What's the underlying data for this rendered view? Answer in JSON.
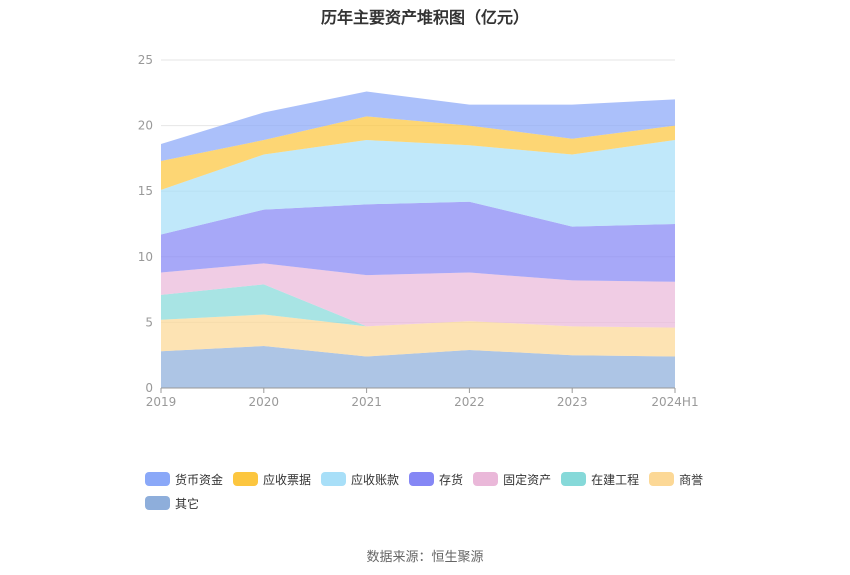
{
  "chart_data": {
    "type": "area",
    "stacked": true,
    "title": "历年主要资产堆积图（亿元）",
    "xlabel": "",
    "ylabel": "",
    "categories": [
      "2019",
      "2020",
      "2021",
      "2022",
      "2023",
      "2024H1"
    ],
    "ylim": [
      0,
      25
    ],
    "yticks": [
      0,
      5,
      10,
      15,
      20,
      25
    ],
    "grid": true,
    "legend_position": "bottom",
    "series": [
      {
        "name": "其它",
        "color": "#8eaedb",
        "values": [
          2.8,
          3.2,
          2.4,
          2.9,
          2.5,
          2.4
        ]
      },
      {
        "name": "商誉",
        "color": "#fcd896",
        "values": [
          2.4,
          2.4,
          2.3,
          2.2,
          2.2,
          2.2
        ]
      },
      {
        "name": "在建工程",
        "color": "#86d9d9",
        "values": [
          1.9,
          2.3,
          0.0,
          0.0,
          0.0,
          0.0
        ]
      },
      {
        "name": "固定资产",
        "color": "#eab8d9",
        "values": [
          1.7,
          1.6,
          3.9,
          3.7,
          3.5,
          3.5
        ]
      },
      {
        "name": "存货",
        "color": "#8587f5",
        "values": [
          2.9,
          4.1,
          5.4,
          5.4,
          4.1,
          4.4
        ]
      },
      {
        "name": "应收账款",
        "color": "#a8dff8",
        "values": [
          3.4,
          4.2,
          4.9,
          4.3,
          5.5,
          6.4
        ]
      },
      {
        "name": "应收票据",
        "color": "#fcc63f",
        "values": [
          2.2,
          1.1,
          1.8,
          1.5,
          1.2,
          1.1
        ]
      },
      {
        "name": "货币资金",
        "color": "#8aa8f8",
        "values": [
          1.3,
          2.1,
          1.9,
          1.6,
          2.6,
          2.0
        ]
      }
    ]
  },
  "legend_order": [
    "货币资金",
    "应收票据",
    "应收账款",
    "存货",
    "固定资产",
    "在建工程",
    "商誉",
    "其它"
  ],
  "source": "数据来源：恒生聚源"
}
